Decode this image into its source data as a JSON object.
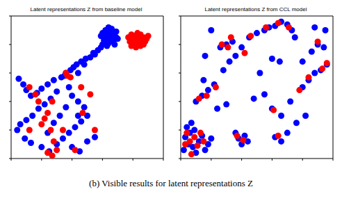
{
  "chart_data": [
    {
      "type": "scatter",
      "title": "Latent representations Z from baseline model",
      "xlim": [
        0,
        100
      ],
      "ylim": [
        0,
        100
      ],
      "xticks": [
        0,
        20,
        40,
        60,
        80,
        100
      ],
      "yticks": [
        0,
        20,
        40,
        60,
        80,
        100
      ],
      "tick_labels": false,
      "marker": "circle",
      "series": [
        {
          "color": "#0000ff",
          "values": [
            [
              60,
              88
            ],
            [
              62,
              90
            ],
            [
              64,
              89
            ],
            [
              66,
              91
            ],
            [
              68,
              88
            ],
            [
              61,
              85
            ],
            [
              63,
              86
            ],
            [
              65,
              84
            ],
            [
              67,
              86
            ],
            [
              69,
              85
            ],
            [
              62,
              82
            ],
            [
              64,
              81
            ],
            [
              66,
              83
            ],
            [
              68,
              80
            ],
            [
              60,
              80
            ],
            [
              63,
              79
            ],
            [
              65,
              87
            ],
            [
              67,
              82
            ],
            [
              70,
              84
            ],
            [
              61,
              83
            ],
            [
              64,
              92
            ],
            [
              66,
              86
            ],
            [
              59,
              86
            ],
            [
              69,
              89
            ],
            [
              63,
              84
            ],
            [
              57,
              76
            ],
            [
              54,
              74
            ],
            [
              52,
              71
            ],
            [
              49,
              70
            ],
            [
              46,
              68
            ],
            [
              43,
              66
            ],
            [
              41,
              64
            ],
            [
              39,
              62
            ],
            [
              44,
              60
            ],
            [
              55,
              73
            ],
            [
              59,
              78
            ],
            [
              48,
              66
            ],
            [
              36,
              60
            ],
            [
              5,
              56
            ],
            [
              8,
              52
            ],
            [
              10,
              48
            ],
            [
              13,
              44
            ],
            [
              17,
              46
            ],
            [
              20,
              49
            ],
            [
              24,
              52
            ],
            [
              28,
              55
            ],
            [
              33,
              57
            ],
            [
              30,
              47
            ],
            [
              26,
              42
            ],
            [
              22,
              38
            ],
            [
              18,
              35
            ],
            [
              14,
              30
            ],
            [
              10,
              27
            ],
            [
              6,
              24
            ],
            [
              4,
              20
            ],
            [
              9,
              14
            ],
            [
              13,
              11
            ],
            [
              20,
              8
            ],
            [
              25,
              5
            ],
            [
              30,
              10
            ],
            [
              34,
              14
            ],
            [
              38,
              18
            ],
            [
              42,
              22
            ],
            [
              46,
              26
            ],
            [
              50,
              30
            ],
            [
              48,
              36
            ],
            [
              44,
              40
            ],
            [
              40,
              44
            ],
            [
              36,
              36
            ],
            [
              32,
              30
            ],
            [
              28,
              25
            ],
            [
              24,
              18
            ],
            [
              40,
              8
            ],
            [
              45,
              5
            ],
            [
              50,
              12
            ],
            [
              55,
              15
            ],
            [
              44,
              30
            ],
            [
              38,
              50
            ],
            [
              35,
              58
            ]
          ]
        },
        {
          "color": "#ff0000",
          "values": [
            [
              77,
              85
            ],
            [
              79,
              87
            ],
            [
              81,
              86
            ],
            [
              83,
              88
            ],
            [
              85,
              87
            ],
            [
              87,
              85
            ],
            [
              89,
              84
            ],
            [
              78,
              82
            ],
            [
              80,
              83
            ],
            [
              82,
              84
            ],
            [
              84,
              83
            ],
            [
              86,
              81
            ],
            [
              88,
              82
            ],
            [
              79,
              79
            ],
            [
              81,
              80
            ],
            [
              83,
              81
            ],
            [
              85,
              79
            ],
            [
              87,
              80
            ],
            [
              80,
              85
            ],
            [
              84,
              86
            ],
            [
              82,
              78
            ],
            [
              86,
              84
            ],
            [
              90,
              86
            ],
            [
              12,
              50
            ],
            [
              16,
              45
            ],
            [
              18,
              40
            ],
            [
              36,
              60
            ],
            [
              37,
              58
            ],
            [
              39,
              57
            ],
            [
              27,
              40
            ],
            [
              24,
              32
            ],
            [
              22,
              28
            ],
            [
              20,
              24
            ],
            [
              26,
              20
            ],
            [
              28,
              12
            ],
            [
              24,
              4
            ],
            [
              27,
              2
            ],
            [
              30,
              6
            ],
            [
              34,
              20
            ],
            [
              47,
              32
            ],
            [
              42,
              6
            ],
            [
              46,
              50
            ],
            [
              52,
              45
            ],
            [
              55,
              20
            ],
            [
              12,
              20
            ]
          ]
        }
      ]
    },
    {
      "type": "scatter",
      "title": "Latent representations Z from CCL model",
      "xlim": [
        0,
        100
      ],
      "ylim": [
        0,
        100
      ],
      "xticks": [
        0,
        20,
        40,
        60,
        80,
        100
      ],
      "yticks": [
        0,
        20,
        40,
        60,
        80,
        100
      ],
      "tick_labels": false,
      "marker": "circle",
      "series": [
        {
          "color": "#0000ff",
          "values": [
            [
              3,
              15
            ],
            [
              6,
              18
            ],
            [
              9,
              20
            ],
            [
              5,
              10
            ],
            [
              8,
              8
            ],
            [
              12,
              12
            ],
            [
              14,
              16
            ],
            [
              10,
              4
            ],
            [
              16,
              6
            ],
            [
              18,
              10
            ],
            [
              4,
              22
            ],
            [
              7,
              25
            ],
            [
              20,
              14
            ],
            [
              2,
              6
            ],
            [
              36,
              18
            ],
            [
              38,
              14
            ],
            [
              40,
              10
            ],
            [
              42,
              16
            ],
            [
              44,
              12
            ],
            [
              10,
              40
            ],
            [
              14,
              44
            ],
            [
              18,
              48
            ],
            [
              22,
              52
            ],
            [
              15,
              55
            ],
            [
              24,
              35
            ],
            [
              30,
              38
            ],
            [
              28,
              62
            ],
            [
              32,
              68
            ],
            [
              36,
              72
            ],
            [
              26,
              78
            ],
            [
              30,
              80
            ],
            [
              34,
              82
            ],
            [
              40,
              78
            ],
            [
              45,
              85
            ],
            [
              50,
              88
            ],
            [
              55,
              90
            ],
            [
              58,
              92
            ],
            [
              62,
              93
            ],
            [
              66,
              96
            ],
            [
              70,
              94
            ],
            [
              73,
              90
            ],
            [
              75,
              85
            ],
            [
              60,
              70
            ],
            [
              65,
              68
            ],
            [
              52,
              60
            ],
            [
              55,
              45
            ],
            [
              48,
              42
            ],
            [
              60,
              35
            ],
            [
              66,
              30
            ],
            [
              72,
              40
            ],
            [
              80,
              50
            ],
            [
              84,
              55
            ],
            [
              88,
              60
            ],
            [
              92,
              62
            ],
            [
              96,
              66
            ],
            [
              86,
              75
            ],
            [
              90,
              80
            ],
            [
              94,
              78
            ],
            [
              80,
              68
            ],
            [
              62,
              15
            ],
            [
              66,
              12
            ],
            [
              70,
              18
            ],
            [
              76,
              25
            ],
            [
              82,
              30
            ],
            [
              88,
              92
            ],
            [
              95,
              90
            ],
            [
              20,
              90
            ],
            [
              16,
              72
            ]
          ]
        },
        {
          "color": "#ff0000",
          "values": [
            [
              4,
              18
            ],
            [
              6,
              12
            ],
            [
              9,
              15
            ],
            [
              11,
              9
            ],
            [
              13,
              18
            ],
            [
              7,
              3
            ],
            [
              15,
              12
            ],
            [
              3,
              10
            ],
            [
              37,
              16
            ],
            [
              41,
              13
            ],
            [
              27,
              80
            ],
            [
              31,
              78
            ],
            [
              33,
              85
            ],
            [
              46,
              86
            ],
            [
              56,
              92
            ],
            [
              64,
              95
            ],
            [
              90,
              82
            ],
            [
              93,
              63
            ],
            [
              61,
              34
            ],
            [
              64,
              16
            ],
            [
              23,
              50
            ],
            [
              17,
              44
            ],
            [
              71,
              92
            ],
            [
              84,
              57
            ],
            [
              78,
              48
            ],
            [
              96,
              67
            ],
            [
              42,
              74
            ],
            [
              12,
              42
            ]
          ]
        }
      ]
    }
  ],
  "caption": "(b) Visible results for latent representations Z"
}
